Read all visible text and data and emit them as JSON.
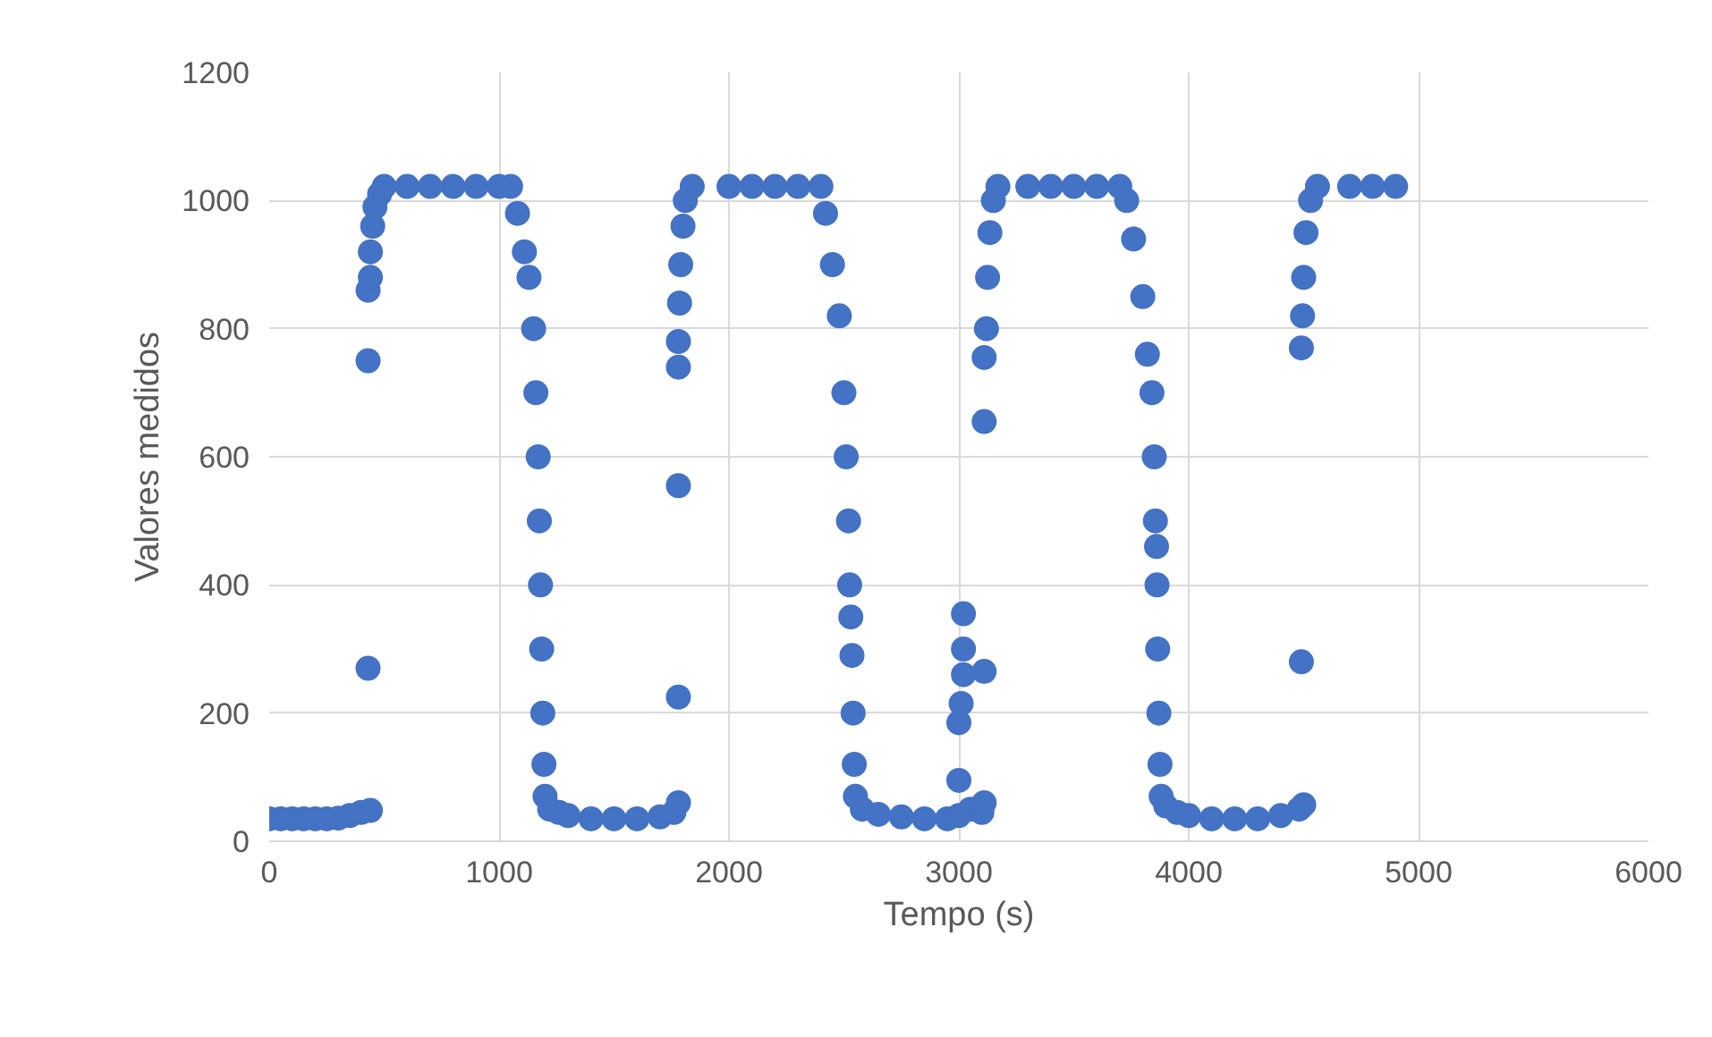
{
  "chart_data": {
    "type": "scatter",
    "xlabel": "Tempo (s)",
    "ylabel": "Valores medidos",
    "xlim": [
      0,
      6000
    ],
    "ylim": [
      0,
      1200
    ],
    "xticks": [
      0,
      1000,
      2000,
      3000,
      4000,
      5000,
      6000
    ],
    "yticks": [
      0,
      200,
      400,
      600,
      800,
      1000,
      1200
    ],
    "grid": true,
    "marker": "circle",
    "series": [
      {
        "color": "#4472c4",
        "x": [
          0,
          50,
          100,
          150,
          200,
          250,
          300,
          350,
          400,
          440,
          430,
          430,
          430,
          440,
          440,
          450,
          460,
          480,
          500,
          600,
          700,
          800,
          900,
          1000,
          1050,
          1080,
          1110,
          1130,
          1150,
          1160,
          1170,
          1175,
          1180,
          1185,
          1190,
          1195,
          1200,
          1220,
          1260,
          1300,
          1400,
          1500,
          1600,
          1700,
          1760,
          1780,
          1780,
          1780,
          1780,
          1780,
          1785,
          1790,
          1800,
          1810,
          1840,
          2000,
          2100,
          2200,
          2300,
          2400,
          2420,
          2450,
          2480,
          2500,
          2510,
          2520,
          2525,
          2530,
          2535,
          2540,
          2545,
          2550,
          2580,
          2650,
          2750,
          2850,
          2950,
          3000,
          3000,
          3000,
          3010,
          3020,
          3020,
          3020,
          3050,
          3100,
          3110,
          3110,
          3110,
          3110,
          3120,
          3125,
          3135,
          3150,
          3170,
          3300,
          3400,
          3500,
          3600,
          3700,
          3730,
          3760,
          3800,
          3820,
          3840,
          3850,
          3855,
          3860,
          3862,
          3865,
          3870,
          3875,
          3880,
          3900,
          3950,
          4000,
          4100,
          4200,
          4300,
          4400,
          4480,
          4500,
          4490,
          4490,
          4495,
          4500,
          4510,
          4530,
          4560,
          4700,
          4800,
          4900
        ],
        "values": [
          35,
          35,
          35,
          35,
          35,
          35,
          36,
          40,
          45,
          48,
          270,
          750,
          860,
          880,
          920,
          960,
          990,
          1010,
          1022,
          1022,
          1022,
          1022,
          1022,
          1022,
          1022,
          980,
          920,
          880,
          800,
          700,
          600,
          500,
          400,
          300,
          200,
          120,
          70,
          50,
          45,
          40,
          35,
          35,
          35,
          38,
          45,
          60,
          225,
          555,
          740,
          780,
          840,
          900,
          960,
          1000,
          1022,
          1022,
          1022,
          1022,
          1022,
          1022,
          980,
          900,
          820,
          700,
          600,
          500,
          400,
          350,
          290,
          200,
          120,
          70,
          50,
          42,
          38,
          35,
          35,
          40,
          95,
          185,
          215,
          260,
          300,
          355,
          50,
          45,
          60,
          265,
          655,
          755,
          800,
          880,
          950,
          1000,
          1022,
          1022,
          1022,
          1022,
          1022,
          1022,
          1000,
          940,
          850,
          760,
          700,
          600,
          500,
          460,
          400,
          300,
          200,
          120,
          70,
          55,
          45,
          40,
          35,
          35,
          35,
          40,
          50,
          57,
          280,
          770,
          820,
          880,
          950,
          1000,
          1022,
          1022,
          1022,
          1022
        ]
      }
    ]
  }
}
